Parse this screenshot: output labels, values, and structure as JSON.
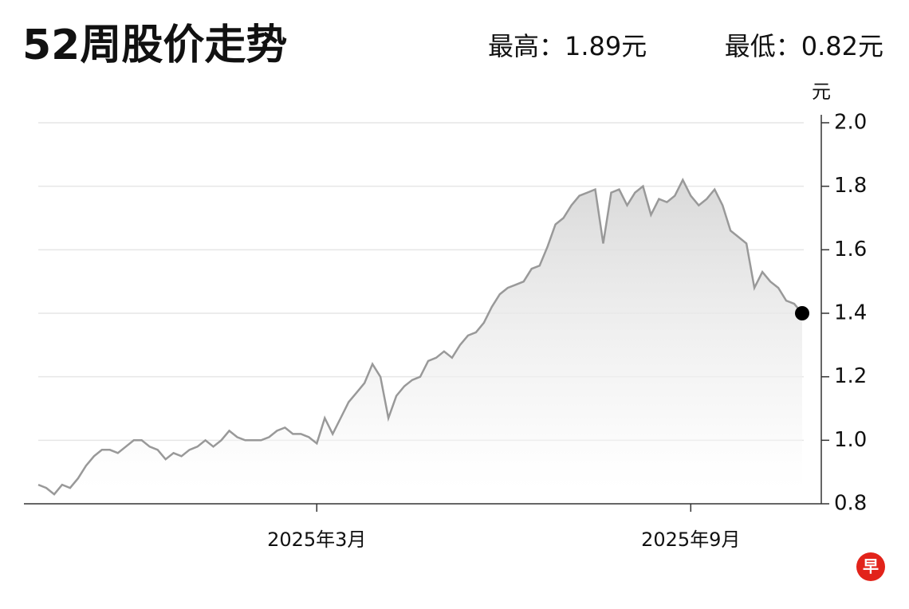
{
  "title": "52周股价走势",
  "high_label": "最高：1.89元",
  "low_label": "最低：0.82元",
  "chart_data": {
    "type": "line",
    "y_unit": "元",
    "color": "#999999",
    "grid": true,
    "ylim": [
      0.8,
      2.0
    ],
    "yticks": [
      0.8,
      {
        "value": 1,
        "label": "1.0"
      },
      1.2,
      1.4,
      1.6,
      1.8,
      {
        "value": 2,
        "label": "2.0"
      }
    ],
    "categories": [
      null,
      null,
      null,
      null,
      null,
      null,
      null,
      null,
      null,
      null,
      null,
      null,
      null,
      null,
      null,
      null,
      null,
      null,
      null,
      null,
      null,
      null,
      null,
      null,
      null,
      null,
      null,
      null,
      null,
      null,
      null,
      null,
      null,
      null,
      null,
      "2025年3月",
      null,
      null,
      null,
      null,
      null,
      null,
      null,
      null,
      null,
      null,
      null,
      null,
      null,
      null,
      null,
      null,
      null,
      null,
      null,
      null,
      null,
      null,
      null,
      null,
      null,
      null,
      null,
      null,
      null,
      null,
      null,
      null,
      null,
      null,
      null,
      null,
      null,
      null,
      null,
      null,
      null,
      null,
      null,
      null,
      null,
      null,
      "2025年9月",
      null,
      null,
      null,
      null,
      null,
      null,
      null,
      null,
      null,
      null,
      null,
      null,
      null,
      null
    ],
    "values": [
      0.86,
      0.85,
      0.83,
      0.86,
      0.85,
      0.88,
      0.92,
      0.95,
      0.97,
      0.97,
      0.96,
      0.98,
      1.0,
      1.0,
      0.98,
      0.97,
      0.94,
      0.96,
      0.95,
      0.97,
      0.98,
      1.0,
      0.98,
      1.0,
      1.03,
      1.01,
      1.0,
      1.0,
      1.0,
      1.01,
      1.03,
      1.04,
      1.02,
      1.02,
      1.01,
      0.99,
      1.07,
      1.02,
      1.07,
      1.12,
      1.15,
      1.18,
      1.24,
      1.2,
      1.07,
      1.14,
      1.17,
      1.19,
      1.2,
      1.25,
      1.26,
      1.28,
      1.26,
      1.3,
      1.33,
      1.34,
      1.37,
      1.42,
      1.46,
      1.48,
      1.49,
      1.5,
      1.54,
      1.55,
      1.61,
      1.68,
      1.7,
      1.74,
      1.77,
      1.78,
      1.79,
      1.62,
      1.78,
      1.79,
      1.74,
      1.78,
      1.8,
      1.71,
      1.76,
      1.75,
      1.77,
      1.82,
      1.77,
      1.74,
      1.76,
      1.79,
      1.74,
      1.66,
      1.64,
      1.62,
      1.48,
      1.53,
      1.5,
      1.48,
      1.44,
      1.43,
      1.4
    ]
  },
  "logo": "早"
}
